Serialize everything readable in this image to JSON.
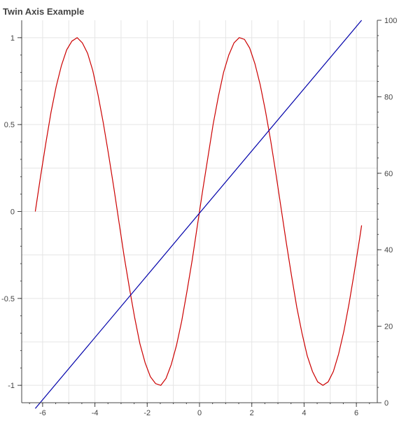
{
  "title": "Twin Axis Example",
  "colors": {
    "background": "#ffffff",
    "grid": "#e5e5e5",
    "axis": "#444444",
    "sine": "#cc0000",
    "linear": "#0000aa"
  },
  "chart_data": {
    "type": "line",
    "title": "Twin Axis Example",
    "xlabel": "",
    "ylabel": "",
    "y2label": "",
    "xlim": [
      -6.8,
      6.8
    ],
    "ylim": [
      -1.1,
      1.1
    ],
    "y2lim": [
      0,
      100
    ],
    "grid": true,
    "x_ticks": [
      -6,
      -4,
      -2,
      0,
      2,
      4,
      6
    ],
    "y_ticks": [
      -1,
      -0.5,
      0,
      0.5,
      1
    ],
    "y2_ticks": [
      0,
      20,
      40,
      60,
      80,
      100
    ],
    "x_tick_labels": [
      "-6",
      "-4",
      "-2",
      "0",
      "2",
      "4",
      "6"
    ],
    "y_tick_labels": [
      "-1",
      "-0.5",
      "0",
      "0.5",
      "1"
    ],
    "y2_tick_labels": [
      "0",
      "20",
      "40",
      "60",
      "80",
      "100"
    ],
    "series": [
      {
        "color": "#cc0000",
        "axis": "left",
        "x": [
          -6.28,
          -6.08,
          -5.88,
          -5.68,
          -5.48,
          -5.28,
          -5.08,
          -4.88,
          -4.68,
          -4.48,
          -4.28,
          -4.08,
          -3.88,
          -3.68,
          -3.48,
          -3.28,
          -3.08,
          -2.88,
          -2.68,
          -2.48,
          -2.28,
          -2.08,
          -1.88,
          -1.68,
          -1.48,
          -1.28,
          -1.08,
          -0.88,
          -0.68,
          -0.48,
          -0.28,
          -0.08,
          0.12,
          0.32,
          0.52,
          0.72,
          0.92,
          1.12,
          1.32,
          1.52,
          1.72,
          1.92,
          2.12,
          2.32,
          2.52,
          2.72,
          2.92,
          3.12,
          3.32,
          3.52,
          3.72,
          3.92,
          4.12,
          4.32,
          4.52,
          4.72,
          4.92,
          5.12,
          5.32,
          5.52,
          5.72,
          5.92,
          6.12,
          6.2
        ],
        "y": [
          0,
          0.2,
          0.39,
          0.57,
          0.72,
          0.84,
          0.93,
          0.98,
          1.0,
          0.97,
          0.91,
          0.81,
          0.67,
          0.51,
          0.33,
          0.14,
          -0.06,
          -0.26,
          -0.44,
          -0.61,
          -0.76,
          -0.87,
          -0.95,
          -0.99,
          -1.0,
          -0.96,
          -0.88,
          -0.77,
          -0.63,
          -0.46,
          -0.28,
          -0.08,
          0.12,
          0.31,
          0.5,
          0.66,
          0.8,
          0.9,
          0.97,
          1.0,
          0.99,
          0.94,
          0.85,
          0.73,
          0.58,
          0.41,
          0.22,
          0.02,
          -0.18,
          -0.37,
          -0.55,
          -0.7,
          -0.83,
          -0.92,
          -0.98,
          -1.0,
          -0.98,
          -0.92,
          -0.82,
          -0.69,
          -0.53,
          -0.35,
          -0.16,
          -0.08
        ]
      },
      {
        "color": "#0000aa",
        "axis": "right",
        "x": [
          -6.28,
          6.2
        ],
        "y": [
          -1.5,
          100
        ]
      }
    ]
  }
}
